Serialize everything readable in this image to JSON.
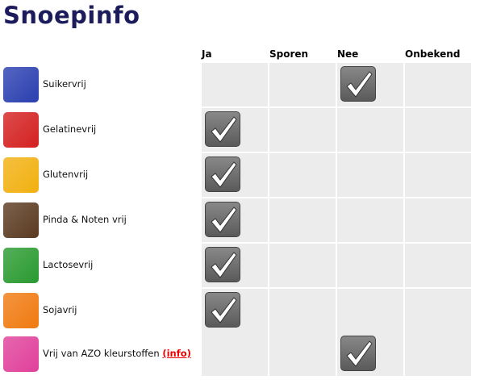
{
  "title": "Snoepinfo",
  "columns": [
    "Ja",
    "Sporen",
    "Nee",
    "Onbekend"
  ],
  "rows": [
    {
      "label": "Suikervrij",
      "icon": "sugar-cubes-icon",
      "color": "#2a3fb0",
      "value": "Nee"
    },
    {
      "label": "Gelatinevrij",
      "icon": "jelly-icon",
      "color": "#d42020",
      "value": "Ja"
    },
    {
      "label": "Glutenvrij",
      "icon": "wheat-icon",
      "color": "#f2b010",
      "value": "Ja"
    },
    {
      "label": "Pinda & Noten vrij",
      "icon": "peanut-icon",
      "color": "#5a3a20",
      "value": "Ja"
    },
    {
      "label": "Lactosevrij",
      "icon": "cow-icon",
      "color": "#2a9a30",
      "value": "Ja"
    },
    {
      "label": "Sojavrij",
      "icon": "soy-bean-icon",
      "color": "#f07a10",
      "value": "Ja"
    },
    {
      "label": "Vrij van AZO kleurstoffen",
      "icon": "flask-icon",
      "color": "#e0409a",
      "value": "Nee",
      "link": "(info)"
    }
  ]
}
